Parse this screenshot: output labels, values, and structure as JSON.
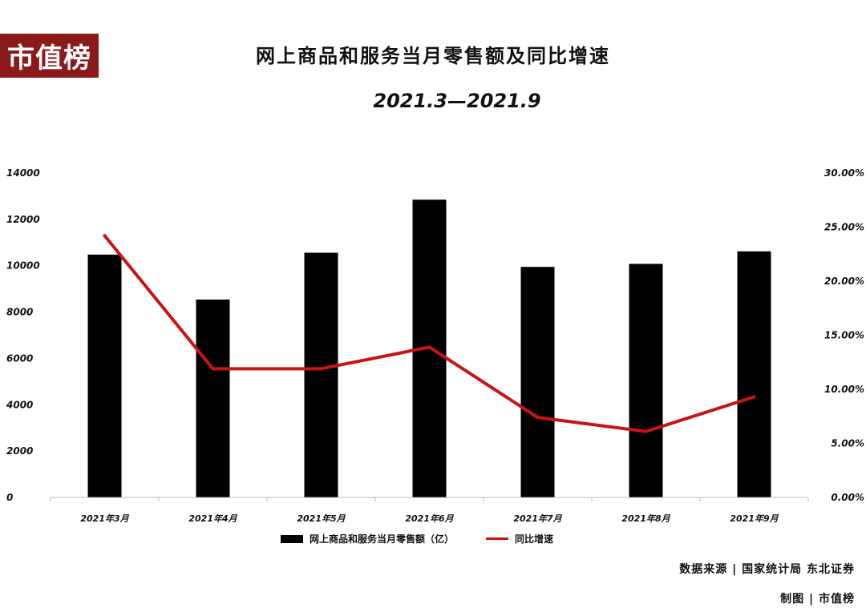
{
  "logo": {
    "text": "市值榜"
  },
  "header": {
    "title": "网上商品和服务当月零售额及同比增速",
    "subtitle": "2021.3—2021.9"
  },
  "chart_data": {
    "type": "bar+line",
    "categories": [
      "2021年3月",
      "2021年4月",
      "2021年5月",
      "2021年6月",
      "2021年7月",
      "2021年8月",
      "2021年9月"
    ],
    "series": [
      {
        "name": "网上商品和服务当月零售额（亿）",
        "type": "bar",
        "axis": "left",
        "color": "#000000",
        "values": [
          10480,
          8540,
          10560,
          12850,
          9950,
          10080,
          10620
        ]
      },
      {
        "name": "同比增速",
        "type": "line",
        "axis": "right",
        "color": "#c81414",
        "values": [
          24.2,
          11.9,
          11.9,
          13.9,
          7.4,
          6.1,
          9.3
        ]
      }
    ],
    "y_left": {
      "min": 0,
      "max": 14000,
      "ticks": [
        "0",
        "2000",
        "4000",
        "6000",
        "8000",
        "10000",
        "12000",
        "14000"
      ]
    },
    "y_right": {
      "min": 0,
      "max": 30,
      "ticks": [
        "0.00%",
        "5.00%",
        "10.00%",
        "15.00%",
        "20.00%",
        "25.00%",
        "30.00%"
      ]
    },
    "grid": false,
    "legend_position": "bottom"
  },
  "footer": {
    "source": "数据来源 | 国家统计局 东北证券",
    "maker": "制图 | 市值榜"
  }
}
